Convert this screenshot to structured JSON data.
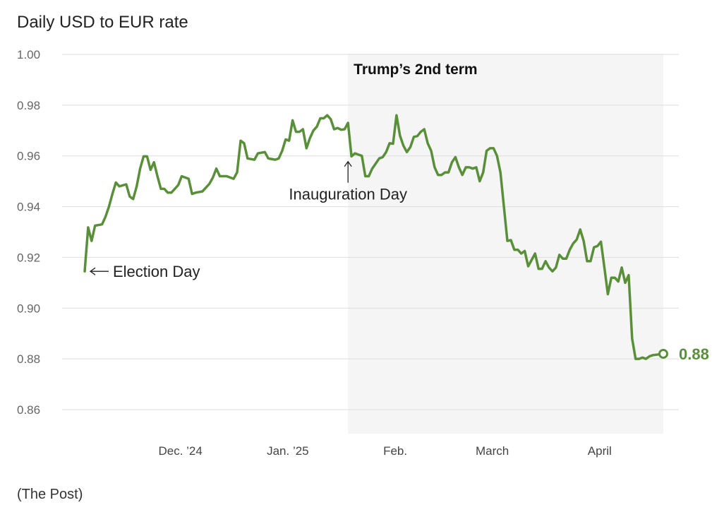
{
  "source": "(The Post)",
  "colors": {
    "line": "#5a8f3a",
    "grid": "#dddddd",
    "shade": "#f5f5f5"
  },
  "chart_data": {
    "type": "line",
    "title": "Daily USD to EUR rate",
    "xlabel": "",
    "ylabel": "",
    "ylim": [
      0.85,
      1.0
    ],
    "xlim": [
      "2024-10-28",
      "2025-04-22"
    ],
    "grid": true,
    "yticks": [
      {
        "value": 1.0,
        "label": "1.00"
      },
      {
        "value": 0.98,
        "label": "0.98"
      },
      {
        "value": 0.96,
        "label": "0.96"
      },
      {
        "value": 0.94,
        "label": "0.94"
      },
      {
        "value": 0.92,
        "label": "0.92"
      },
      {
        "value": 0.9,
        "label": "0.90"
      },
      {
        "value": 0.88,
        "label": "0.88"
      },
      {
        "value": 0.86,
        "label": "0.86"
      }
    ],
    "xticks": [
      {
        "date": "2024-12-01",
        "label": "Dec. ’24"
      },
      {
        "date": "2025-01-01",
        "label": "Jan. ’25"
      },
      {
        "date": "2025-02-01",
        "label": "Feb."
      },
      {
        "date": "2025-03-01",
        "label": "March"
      },
      {
        "date": "2025-04-01",
        "label": "April"
      }
    ],
    "shaded_region": {
      "start": "2025-01-20",
      "end": "2025-04-21",
      "label": "Trump’s 2nd term"
    },
    "annotations": [
      {
        "date": "2024-11-05",
        "value": 0.9145,
        "text": "Election Day",
        "direction": "left"
      },
      {
        "date": "2025-01-20",
        "value": 0.96,
        "text": "Inauguration Day",
        "direction": "up"
      }
    ],
    "last_value": {
      "date": "2025-04-21",
      "value": 0.882,
      "label": "0.88"
    },
    "series": [
      {
        "points": [
          [
            "2024-11-05",
            0.9145
          ],
          [
            "2024-11-06",
            0.9318
          ],
          [
            "2024-11-07",
            0.9265
          ],
          [
            "2024-11-08",
            0.9325
          ],
          [
            "2024-11-10",
            0.933
          ],
          [
            "2024-11-11",
            0.936
          ],
          [
            "2024-11-12",
            0.94
          ],
          [
            "2024-11-13",
            0.945
          ],
          [
            "2024-11-14",
            0.9495
          ],
          [
            "2024-11-15",
            0.948
          ],
          [
            "2024-11-17",
            0.9488
          ],
          [
            "2024-11-18",
            0.944
          ],
          [
            "2024-11-19",
            0.943
          ],
          [
            "2024-11-20",
            0.948
          ],
          [
            "2024-11-21",
            0.955
          ],
          [
            "2024-11-22",
            0.9598
          ],
          [
            "2024-11-23",
            0.9598
          ],
          [
            "2024-11-24",
            0.9545
          ],
          [
            "2024-11-25",
            0.9575
          ],
          [
            "2024-11-26",
            0.952
          ],
          [
            "2024-11-27",
            0.947
          ],
          [
            "2024-11-28",
            0.947
          ],
          [
            "2024-11-29",
            0.9455
          ],
          [
            "2024-11-30",
            0.9455
          ],
          [
            "2024-12-02",
            0.9485
          ],
          [
            "2024-12-03",
            0.952
          ],
          [
            "2024-12-05",
            0.951
          ],
          [
            "2024-12-06",
            0.945
          ],
          [
            "2024-12-07",
            0.9455
          ],
          [
            "2024-12-09",
            0.946
          ],
          [
            "2024-12-10",
            0.9475
          ],
          [
            "2024-12-11",
            0.949
          ],
          [
            "2024-12-12",
            0.9515
          ],
          [
            "2024-12-13",
            0.955
          ],
          [
            "2024-12-14",
            0.952
          ],
          [
            "2024-12-16",
            0.952
          ],
          [
            "2024-12-18",
            0.951
          ],
          [
            "2024-12-19",
            0.9535
          ],
          [
            "2024-12-20",
            0.966
          ],
          [
            "2024-12-21",
            0.965
          ],
          [
            "2024-12-22",
            0.959
          ],
          [
            "2024-12-24",
            0.9585
          ],
          [
            "2024-12-25",
            0.961
          ],
          [
            "2024-12-27",
            0.9615
          ],
          [
            "2024-12-28",
            0.959
          ],
          [
            "2024-12-30",
            0.9585
          ],
          [
            "2024-12-31",
            0.959
          ],
          [
            "2025-01-01",
            0.962
          ],
          [
            "2025-01-02",
            0.9665
          ],
          [
            "2025-01-03",
            0.966
          ],
          [
            "2025-01-04",
            0.974
          ],
          [
            "2025-01-05",
            0.9695
          ],
          [
            "2025-01-06",
            0.9695
          ],
          [
            "2025-01-07",
            0.9705
          ],
          [
            "2025-01-08",
            0.963
          ],
          [
            "2025-01-09",
            0.967
          ],
          [
            "2025-01-10",
            0.97
          ],
          [
            "2025-01-11",
            0.9715
          ],
          [
            "2025-01-12",
            0.9748
          ],
          [
            "2025-01-13",
            0.9748
          ],
          [
            "2025-01-14",
            0.976
          ],
          [
            "2025-01-15",
            0.9745
          ],
          [
            "2025-01-16",
            0.9705
          ],
          [
            "2025-01-17",
            0.971
          ],
          [
            "2025-01-18",
            0.9703
          ],
          [
            "2025-01-19",
            0.9705
          ],
          [
            "2025-01-20",
            0.973
          ],
          [
            "2025-01-21",
            0.9598
          ],
          [
            "2025-01-22",
            0.961
          ],
          [
            "2025-01-24",
            0.96
          ],
          [
            "2025-01-25",
            0.952
          ],
          [
            "2025-01-26",
            0.952
          ],
          [
            "2025-01-27",
            0.955
          ],
          [
            "2025-01-28",
            0.957
          ],
          [
            "2025-01-29",
            0.959
          ],
          [
            "2025-01-30",
            0.9595
          ],
          [
            "2025-01-31",
            0.9615
          ],
          [
            "2025-02-01",
            0.965
          ],
          [
            "2025-02-02",
            0.9648
          ],
          [
            "2025-02-03",
            0.976
          ],
          [
            "2025-02-04",
            0.968
          ],
          [
            "2025-02-05",
            0.964
          ],
          [
            "2025-02-06",
            0.9615
          ],
          [
            "2025-02-07",
            0.9635
          ],
          [
            "2025-02-08",
            0.9675
          ],
          [
            "2025-02-09",
            0.9678
          ],
          [
            "2025-02-10",
            0.9695
          ],
          [
            "2025-02-11",
            0.9705
          ],
          [
            "2025-02-12",
            0.965
          ],
          [
            "2025-02-13",
            0.962
          ],
          [
            "2025-02-14",
            0.9555
          ],
          [
            "2025-02-15",
            0.9525
          ],
          [
            "2025-02-16",
            0.9525
          ],
          [
            "2025-02-17",
            0.9535
          ],
          [
            "2025-02-18",
            0.9535
          ],
          [
            "2025-02-19",
            0.9575
          ],
          [
            "2025-02-20",
            0.9595
          ],
          [
            "2025-02-21",
            0.9555
          ],
          [
            "2025-02-22",
            0.9525
          ],
          [
            "2025-02-23",
            0.9555
          ],
          [
            "2025-02-24",
            0.9555
          ],
          [
            "2025-02-25",
            0.955
          ],
          [
            "2025-02-26",
            0.9555
          ],
          [
            "2025-02-27",
            0.95
          ],
          [
            "2025-02-28",
            0.9535
          ],
          [
            "2025-03-01",
            0.962
          ],
          [
            "2025-03-02",
            0.963
          ],
          [
            "2025-03-03",
            0.963
          ],
          [
            "2025-03-04",
            0.96
          ],
          [
            "2025-03-05",
            0.9535
          ],
          [
            "2025-03-06",
            0.94
          ],
          [
            "2025-03-07",
            0.9265
          ],
          [
            "2025-03-08",
            0.9268
          ],
          [
            "2025-03-09",
            0.923
          ],
          [
            "2025-03-10",
            0.923
          ],
          [
            "2025-03-11",
            0.9215
          ],
          [
            "2025-03-12",
            0.9225
          ],
          [
            "2025-03-13",
            0.9165
          ],
          [
            "2025-03-14",
            0.919
          ],
          [
            "2025-03-15",
            0.9215
          ],
          [
            "2025-03-16",
            0.9155
          ],
          [
            "2025-03-17",
            0.9155
          ],
          [
            "2025-03-18",
            0.9185
          ],
          [
            "2025-03-19",
            0.916
          ],
          [
            "2025-03-20",
            0.9145
          ],
          [
            "2025-03-21",
            0.916
          ],
          [
            "2025-03-22",
            0.921
          ],
          [
            "2025-03-23",
            0.9195
          ],
          [
            "2025-03-24",
            0.9195
          ],
          [
            "2025-03-25",
            0.923
          ],
          [
            "2025-03-26",
            0.9255
          ],
          [
            "2025-03-27",
            0.927
          ],
          [
            "2025-03-28",
            0.931
          ],
          [
            "2025-03-29",
            0.9265
          ],
          [
            "2025-03-30",
            0.9185
          ],
          [
            "2025-03-31",
            0.9185
          ],
          [
            "2025-04-01",
            0.924
          ],
          [
            "2025-04-02",
            0.9245
          ],
          [
            "2025-04-03",
            0.9262
          ],
          [
            "2025-04-04",
            0.916
          ],
          [
            "2025-04-05",
            0.9055
          ],
          [
            "2025-04-06",
            0.912
          ],
          [
            "2025-04-07",
            0.912
          ],
          [
            "2025-04-08",
            0.9105
          ],
          [
            "2025-04-09",
            0.916
          ],
          [
            "2025-04-10",
            0.91
          ],
          [
            "2025-04-11",
            0.913
          ],
          [
            "2025-04-12",
            0.888
          ],
          [
            "2025-04-13",
            0.88
          ],
          [
            "2025-04-14",
            0.88
          ],
          [
            "2025-04-15",
            0.8805
          ],
          [
            "2025-04-16",
            0.88
          ],
          [
            "2025-04-17",
            0.881
          ],
          [
            "2025-04-18",
            0.8815
          ],
          [
            "2025-04-21",
            0.882
          ]
        ]
      }
    ]
  }
}
